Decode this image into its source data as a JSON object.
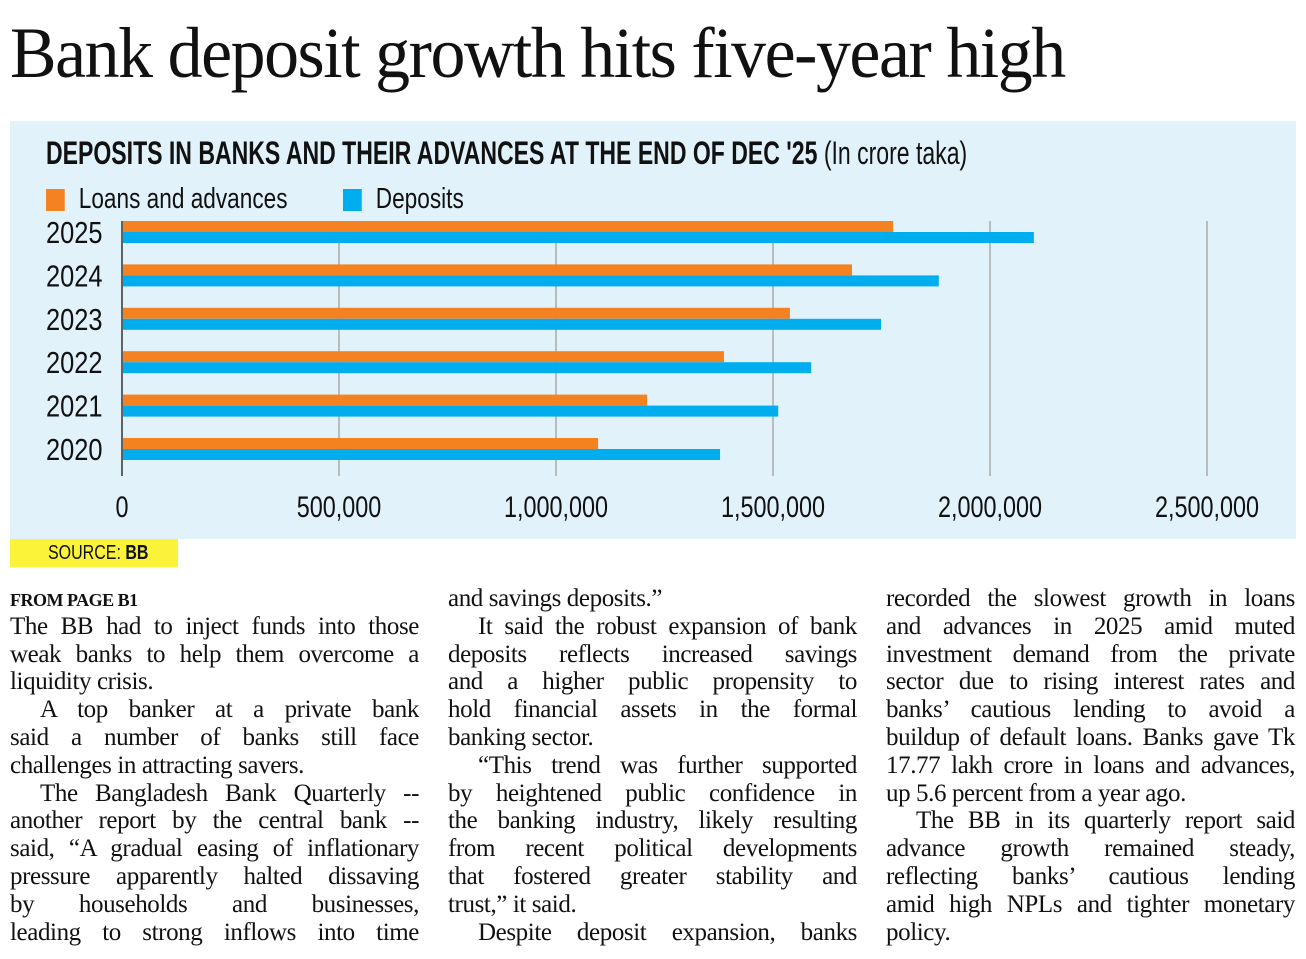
{
  "headline": "Bank deposit growth hits five-year high",
  "source": {
    "label": "SOURCE:",
    "value": "BB"
  },
  "colors": {
    "loans": "#f58220",
    "deposits": "#00aeef",
    "panel": "#e1f2fb",
    "grid": "#9a9a9a"
  },
  "chart_data": {
    "type": "bar",
    "orientation": "horizontal",
    "title": "DEPOSITS IN BANKS AND THEIR ADVANCES AT THE END OF DEC '25",
    "unit": "(In crore taka)",
    "categories": [
      "2025",
      "2024",
      "2023",
      "2022",
      "2021",
      "2020"
    ],
    "series": [
      {
        "name": "Loans and advances",
        "values": [
          1777000,
          1682000,
          1539000,
          1387000,
          1210000,
          1097000
        ]
      },
      {
        "name": "Deposits",
        "values": [
          2101000,
          1882000,
          1749000,
          1588000,
          1512000,
          1378000
        ]
      }
    ],
    "xlim": [
      0,
      2500000
    ],
    "xticks": [
      0,
      500000,
      1000000,
      1500000,
      2000000,
      2500000
    ],
    "xtick_labels": [
      "0",
      "500,000",
      "1,000,000",
      "1,500,000",
      "2,000,000",
      "2,500,000"
    ],
    "legend": "top-left",
    "grid": true
  },
  "article": {
    "kicker": "FROM PAGE B1",
    "columns": [
      [
        {
          "t": "The BB had to inject funds into those"
        },
        {
          "t": "weak banks to help them overcome a"
        },
        {
          "t": "liquidity crisis.",
          "end": true
        },
        {
          "t": "A top banker at a private bank",
          "ind": true
        },
        {
          "t": "said a number of banks still face"
        },
        {
          "t": "challenges in attracting savers.",
          "end": true
        },
        {
          "t": "The Bangladesh Bank Quarterly --",
          "ind": true
        },
        {
          "t": "another report by the central bank --"
        },
        {
          "t": "said, “A gradual easing of inflationary"
        },
        {
          "t": "pressure apparently halted dissaving"
        },
        {
          "t": "by households and businesses,"
        },
        {
          "t": "leading to strong inflows into time"
        }
      ],
      [
        {
          "t": "and savings deposits.”",
          "end": true
        },
        {
          "t": "It said the robust expansion of bank",
          "ind": true
        },
        {
          "t": "deposits reflects increased savings"
        },
        {
          "t": "and a higher public propensity to"
        },
        {
          "t": "hold financial assets in the formal"
        },
        {
          "t": "banking sector.",
          "end": true
        },
        {
          "t": "“This trend was further supported",
          "ind": true
        },
        {
          "t": "by heightened public confidence in"
        },
        {
          "t": "the banking industry, likely resulting"
        },
        {
          "t": "from recent political developments"
        },
        {
          "t": "that fostered greater stability and"
        },
        {
          "t": "trust,” it said.",
          "end": true
        },
        {
          "t": "Despite deposit expansion, banks",
          "ind": true
        }
      ],
      [
        {
          "t": "recorded the slowest growth in loans"
        },
        {
          "t": "and advances in 2025 amid muted"
        },
        {
          "t": "investment demand from the private"
        },
        {
          "t": "sector due to rising interest rates and"
        },
        {
          "t": "banks’ cautious lending to avoid a"
        },
        {
          "t": "buildup of default loans. Banks gave Tk"
        },
        {
          "t": "17.77 lakh crore in loans and advances,"
        },
        {
          "t": "up 5.6 percent from a year ago.",
          "end": true
        },
        {
          "t": "The BB in its quarterly report said",
          "ind": true
        },
        {
          "t": "advance growth remained steady,"
        },
        {
          "t": "reflecting banks’ cautious lending"
        },
        {
          "t": "amid high NPLs and tighter monetary"
        },
        {
          "t": "policy.",
          "end": true
        }
      ]
    ]
  }
}
